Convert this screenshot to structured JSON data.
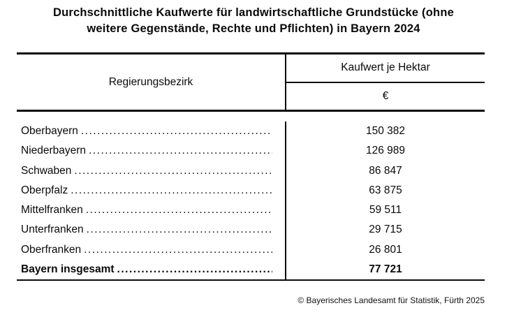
{
  "title": {
    "line1": "Durchschnittliche Kaufwerte für landwirtschaftliche Grundstücke (ohne",
    "line2": "weitere Gegenstände, Rechte und Pflichten) in Bayern 2024"
  },
  "table": {
    "col_region_header": "Regierungsbezirk",
    "col_value_header": "Kaufwert je Hektar",
    "col_value_unit": "€",
    "rows": [
      {
        "label": "Oberbayern",
        "value": "150 382",
        "bold": false
      },
      {
        "label": "Niederbayern",
        "value": "126 989",
        "bold": false
      },
      {
        "label": "Schwaben",
        "value": "86 847",
        "bold": false
      },
      {
        "label": "Oberpfalz",
        "value": "63 875",
        "bold": false
      },
      {
        "label": "Mittelfranken",
        "value": "59 511",
        "bold": false
      },
      {
        "label": "Unterfranken",
        "value": "29 715",
        "bold": false
      },
      {
        "label": "Oberfranken",
        "value": "26 801",
        "bold": false
      },
      {
        "label": "Bayern insgesamt",
        "value": "77 721",
        "bold": true
      }
    ]
  },
  "footer": {
    "copyright": "© Bayerisches Landesamt für Statistik, Fürth 2025"
  }
}
